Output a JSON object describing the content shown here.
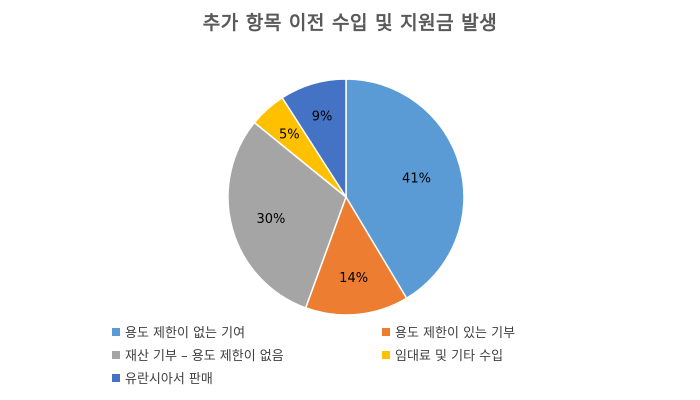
{
  "chart_data": {
    "type": "pie",
    "title": "추가 항목 이전 수입 및 지원금 발생",
    "categories": [
      "용도 제한이 없는 기여",
      "용도 제한이 있는 기부",
      "재산 기부 – 용도 제한이 없음",
      "임대료 및 기타 수입",
      "유란시아서 판매"
    ],
    "values": [
      41,
      14,
      30,
      5,
      9
    ],
    "labels": [
      "41%",
      "14%",
      "30%",
      "5%",
      "9%"
    ],
    "colors": [
      "#5B9BD5",
      "#ED7D31",
      "#A5A5A5",
      "#FFC000",
      "#4472C4"
    ],
    "legend_position": "bottom",
    "start_angle": "top, clockwise"
  }
}
